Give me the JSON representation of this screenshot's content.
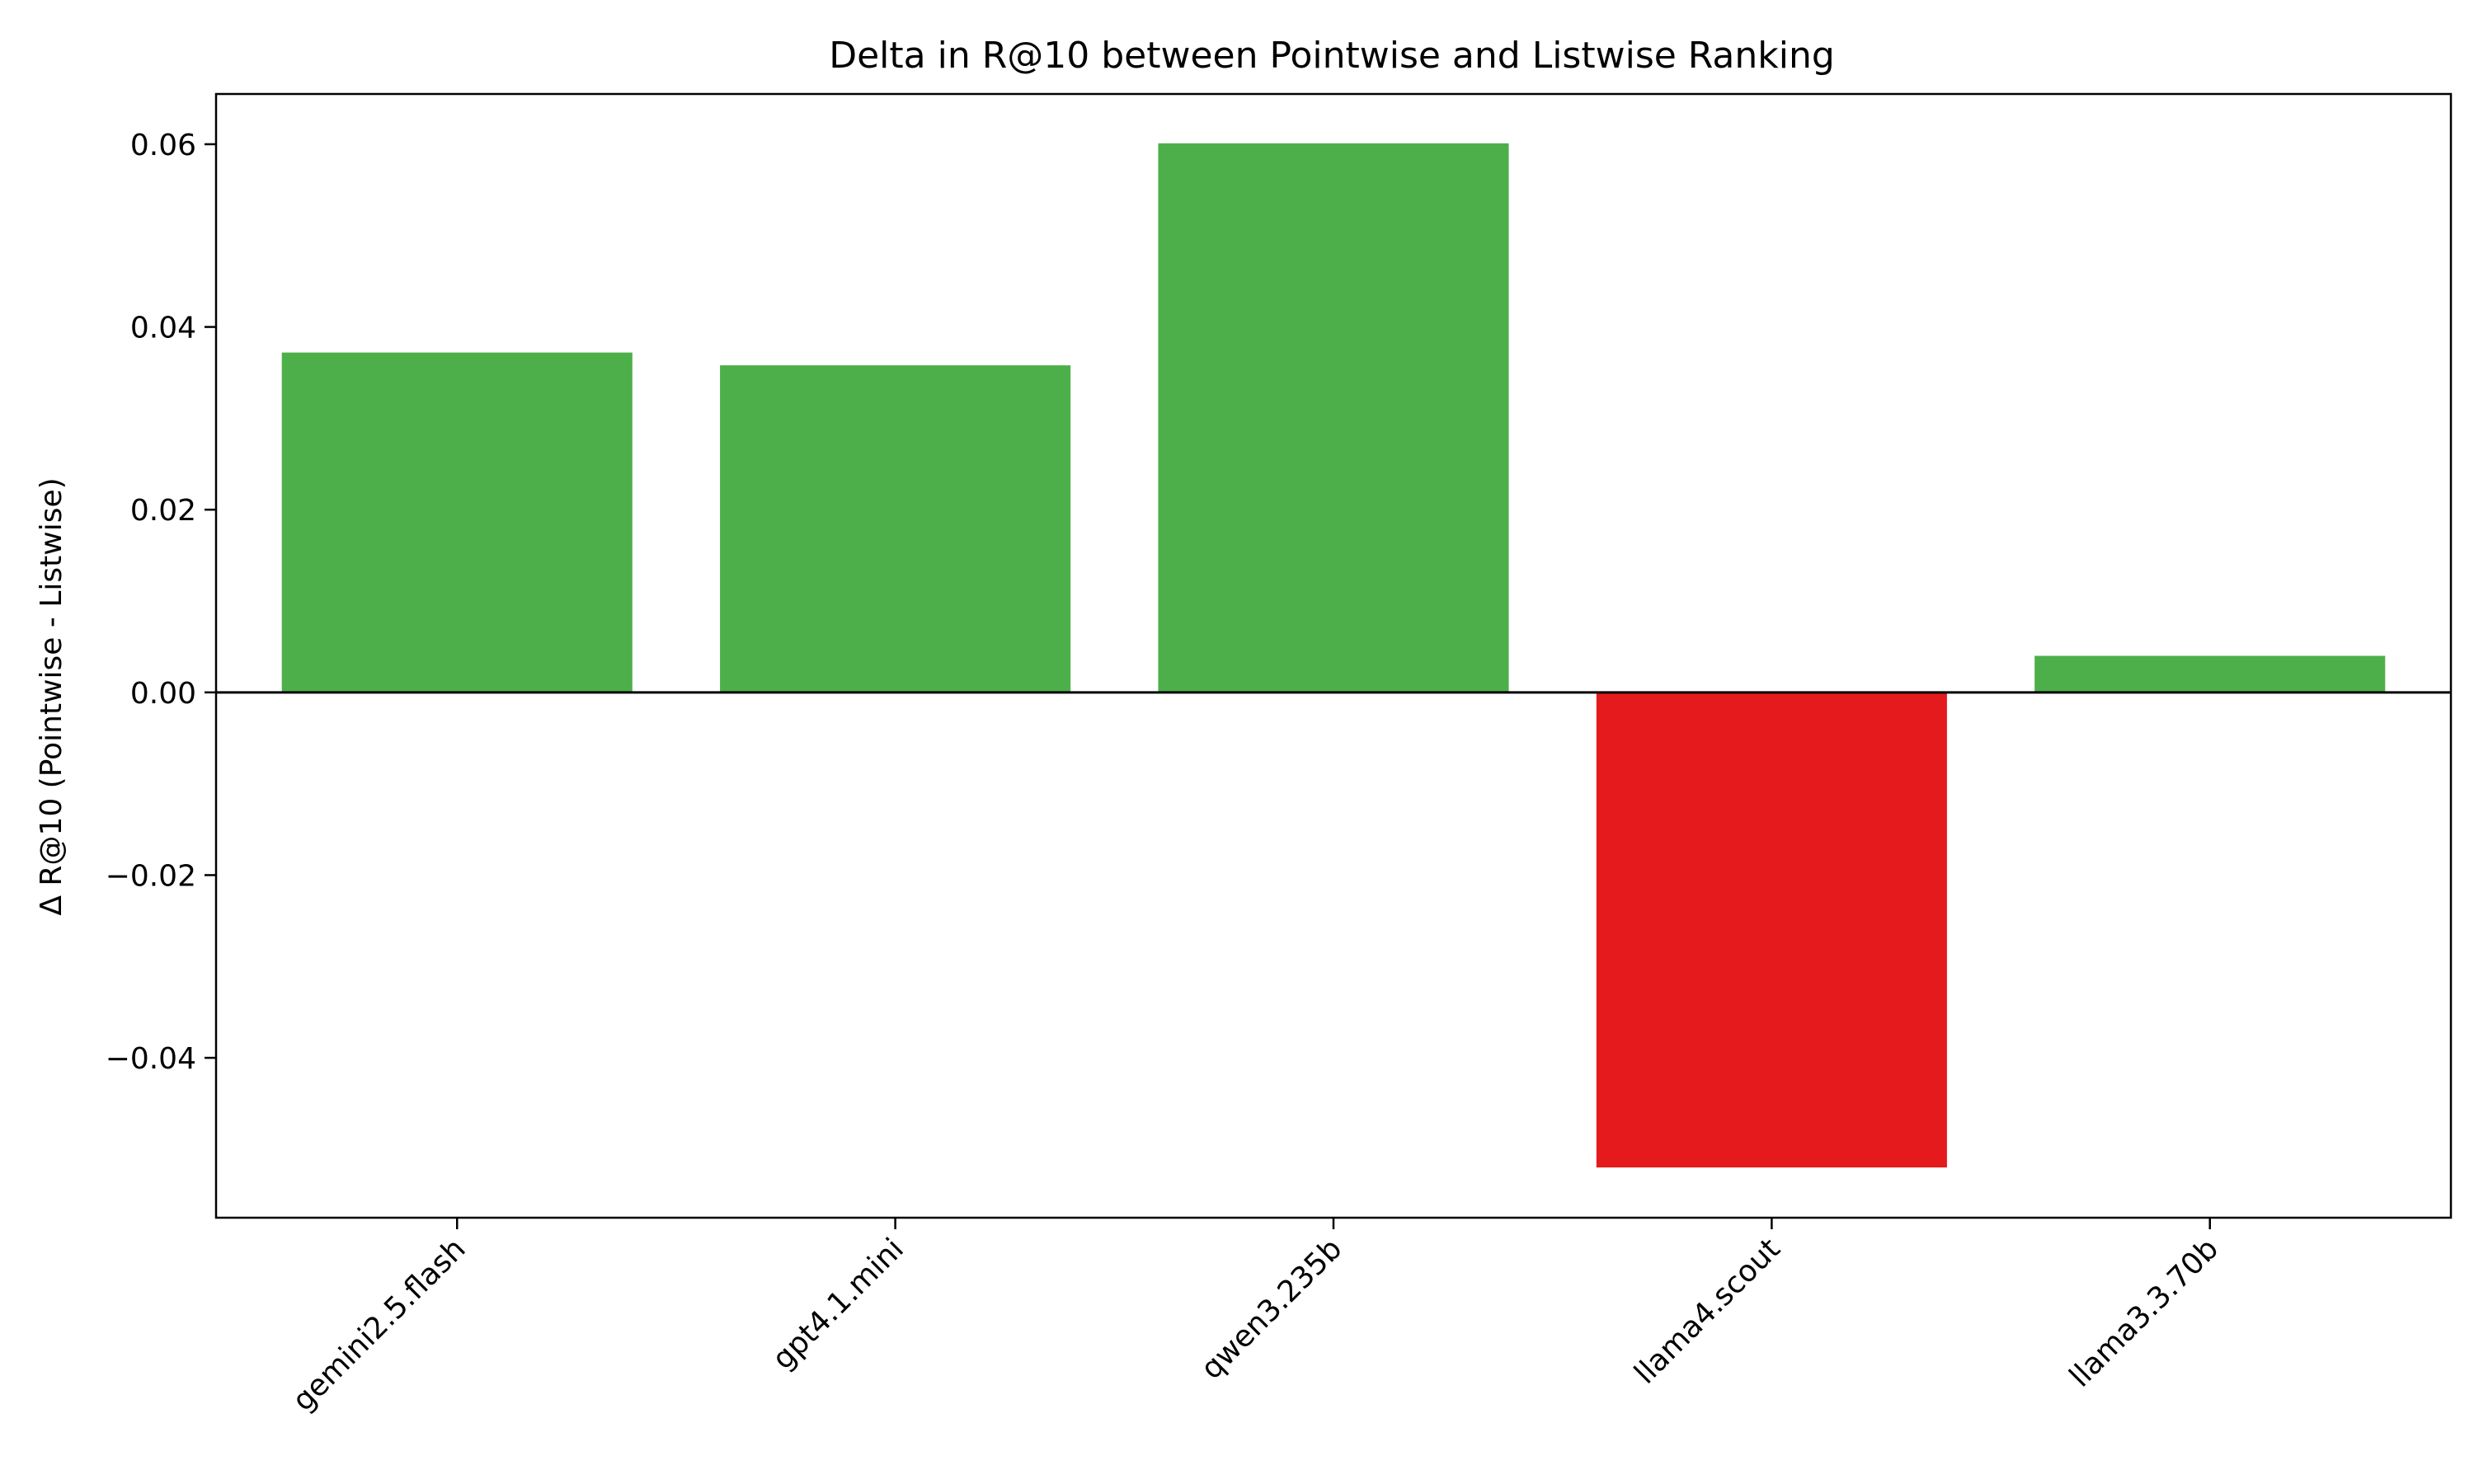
{
  "chart_data": {
    "type": "bar",
    "title": "Delta in R@10 between Pointwise and Listwise Ranking",
    "xlabel": "",
    "ylabel": "Δ R@10 (Pointwise - Listwise)",
    "categories": [
      "gemini2.5.flash",
      "gpt4.1.mini",
      "qwen3.235b",
      "llama4.scout",
      "llama3.3.70b"
    ],
    "values": [
      0.0372,
      0.0358,
      0.0601,
      -0.052,
      0.004
    ],
    "ylim": [
      -0.0575,
      0.0655
    ],
    "yticks": [
      -0.04,
      -0.02,
      0.0,
      0.02,
      0.04,
      0.06
    ],
    "ytick_labels": [
      "−0.04",
      "−0.02",
      "0.00",
      "0.02",
      "0.04",
      "0.06"
    ],
    "colors": {
      "positive": "#4daf4a",
      "negative": "#e41a1c",
      "zero_line": "#000000"
    },
    "grid": false,
    "legend": "none"
  }
}
